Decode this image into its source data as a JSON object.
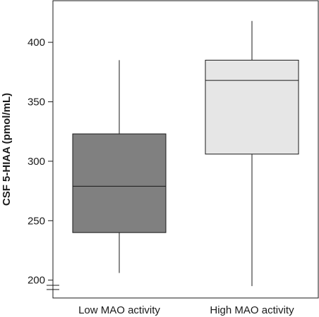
{
  "chart_data": {
    "type": "boxplot",
    "title": "",
    "xlabel": "",
    "ylabel": "CSF 5-HIAA (pmol/mL)",
    "ylim": [
      185,
      435
    ],
    "yticks": [
      200,
      250,
      300,
      350,
      400
    ],
    "axis_break": true,
    "grid": false,
    "categories": [
      "Low MAO activity",
      "High MAO activity"
    ],
    "boxes": [
      {
        "category": "Low MAO activity",
        "min": 206,
        "q1": 240,
        "median": 279,
        "q3": 323,
        "max": 385,
        "color": "#808080"
      },
      {
        "category": "High MAO activity",
        "min": 195,
        "q1": 306,
        "median": 368,
        "q3": 385,
        "max": 418,
        "color": "#e6e6e6"
      }
    ]
  }
}
